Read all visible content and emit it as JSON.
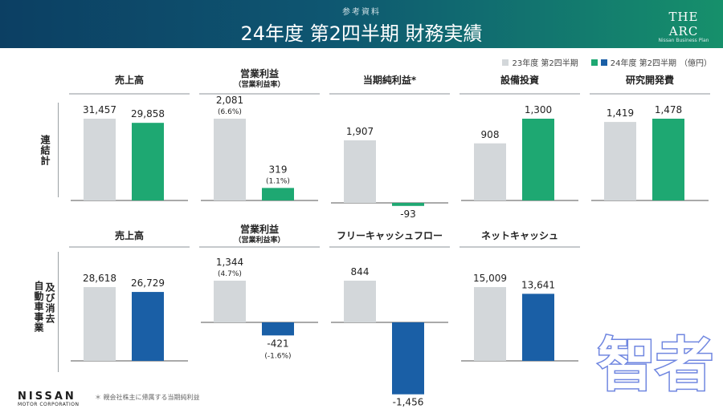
{
  "header": {
    "sub_label": "参考資料",
    "title": "24年度 第2四半期 財務実績",
    "logo_main": "THE ARC",
    "logo_sub": "Nissan Business Plan"
  },
  "legend": {
    "items": [
      {
        "label": "23年度 第2四半期",
        "color": "#d3d7da"
      },
      {
        "label": "24年度 第2四半期",
        "colors": [
          "#1ea872",
          "#1a5fa6"
        ]
      }
    ],
    "unit": "（億円）"
  },
  "row_labels": {
    "consolidated": "連結計",
    "automotive_line1": "自動車事業",
    "automotive_line2": "及び消去"
  },
  "footer": {
    "logo": "NISSAN",
    "logo_sub": "MOTOR CORPORATION",
    "footnote": "＊ 親会社株主に帰属する当期純利益"
  },
  "watermark": "智者",
  "colors": {
    "prev": "#d3d7da",
    "green": "#1ea872",
    "blue": "#1a5fa6"
  },
  "chart_data": [
    {
      "type": "bar",
      "row": "連結計",
      "title": "売上高",
      "subtitle": "",
      "categories": [
        "23年度 第2四半期",
        "24年度 第2四半期"
      ],
      "values": [
        31457,
        29858
      ],
      "labels": [
        "31,457",
        "29,858"
      ],
      "sublabels": [
        "",
        ""
      ],
      "color": "green"
    },
    {
      "type": "bar",
      "row": "連結計",
      "title": "営業利益",
      "subtitle": "（営業利益率）",
      "categories": [
        "23年度 第2四半期",
        "24年度 第2四半期"
      ],
      "values": [
        2081,
        319
      ],
      "labels": [
        "2,081",
        "319"
      ],
      "sublabels": [
        "(6.6%)",
        "(1.1%)"
      ],
      "color": "green"
    },
    {
      "type": "bar",
      "row": "連結計",
      "title": "当期純利益*",
      "subtitle": "",
      "categories": [
        "23年度 第2四半期",
        "24年度 第2四半期"
      ],
      "values": [
        1907,
        -93
      ],
      "labels": [
        "1,907",
        "-93"
      ],
      "sublabels": [
        "",
        ""
      ],
      "color": "green"
    },
    {
      "type": "bar",
      "row": "連結計",
      "title": "設備投資",
      "subtitle": "",
      "categories": [
        "23年度 第2四半期",
        "24年度 第2四半期"
      ],
      "values": [
        908,
        1300
      ],
      "labels": [
        "908",
        "1,300"
      ],
      "sublabels": [
        "",
        ""
      ],
      "color": "green"
    },
    {
      "type": "bar",
      "row": "連結計",
      "title": "研究開発費",
      "subtitle": "",
      "categories": [
        "23年度 第2四半期",
        "24年度 第2四半期"
      ],
      "values": [
        1419,
        1478
      ],
      "labels": [
        "1,419",
        "1,478"
      ],
      "sublabels": [
        "",
        ""
      ],
      "color": "green"
    },
    {
      "type": "bar",
      "row": "自動車事業及び消去",
      "title": "売上高",
      "subtitle": "",
      "categories": [
        "23年度 第2四半期",
        "24年度 第2四半期"
      ],
      "values": [
        28618,
        26729
      ],
      "labels": [
        "28,618",
        "26,729"
      ],
      "sublabels": [
        "",
        ""
      ],
      "color": "blue"
    },
    {
      "type": "bar",
      "row": "自動車事業及び消去",
      "title": "営業利益",
      "subtitle": "（営業利益率）",
      "categories": [
        "23年度 第2四半期",
        "24年度 第2四半期"
      ],
      "values": [
        1344,
        -421
      ],
      "labels": [
        "1,344",
        "-421"
      ],
      "sublabels": [
        "(4.7%)",
        "(-1.6%)"
      ],
      "color": "blue"
    },
    {
      "type": "bar",
      "row": "自動車事業及び消去",
      "title": "フリーキャッシュフロー",
      "subtitle": "",
      "categories": [
        "23年度 第2四半期",
        "24年度 第2四半期"
      ],
      "values": [
        844,
        -1456
      ],
      "labels": [
        "844",
        "-1,456"
      ],
      "sublabels": [
        "",
        ""
      ],
      "color": "blue"
    },
    {
      "type": "bar",
      "row": "自動車事業及び消去",
      "title": "ネットキャッシュ",
      "subtitle": "",
      "categories": [
        "23年度 第2四半期",
        "24年度 第2四半期"
      ],
      "values": [
        15009,
        13641
      ],
      "labels": [
        "15,009",
        "13,641"
      ],
      "sublabels": [
        "",
        ""
      ],
      "color": "blue"
    }
  ]
}
